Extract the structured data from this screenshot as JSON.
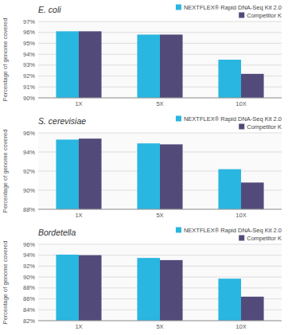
{
  "chart_data": [
    {
      "type": "bar",
      "title": "E. coli",
      "ylabel": "Percentage of genome covered",
      "categories": [
        "1X",
        "5X",
        "10X"
      ],
      "series": [
        {
          "name": "NEXTFLEX® Rapid DNA-Seq Kit 2.0",
          "color": "#29B6E0",
          "values": [
            96.1,
            95.8,
            93.5
          ]
        },
        {
          "name": "Competitor K",
          "color": "#524B7A",
          "values": [
            96.1,
            95.8,
            92.2
          ]
        }
      ],
      "ylim": [
        90,
        97
      ],
      "yticks": [
        {
          "value": 90,
          "label": "90%"
        },
        {
          "value": 91,
          "label": "91%"
        },
        {
          "value": 92,
          "label": "92%"
        },
        {
          "value": 93,
          "label": "93%"
        },
        {
          "value": 94,
          "label": "94%"
        },
        {
          "value": 95,
          "label": "95%"
        },
        {
          "value": 96,
          "label": "96%"
        },
        {
          "value": 97,
          "label": "97%"
        }
      ],
      "grid": true,
      "legend": "upper right"
    },
    {
      "type": "bar",
      "title": "S. cerevisiae",
      "ylabel": "Percentage of genome covered",
      "categories": [
        "1X",
        "5X",
        "10X"
      ],
      "series": [
        {
          "name": "NEXTFLEX® Rapid DNA-Seq Kit 2.0",
          "color": "#29B6E0",
          "values": [
            95.3,
            94.9,
            92.2
          ]
        },
        {
          "name": "Competitor K",
          "color": "#524B7A",
          "values": [
            95.4,
            94.8,
            90.8
          ]
        }
      ],
      "ylim": [
        88,
        96
      ],
      "yticks": [
        {
          "value": 88,
          "label": "88%"
        },
        {
          "value": 90,
          "label": "90%"
        },
        {
          "value": 92,
          "label": "92%"
        },
        {
          "value": 94,
          "label": "94%"
        },
        {
          "value": 96,
          "label": "96%"
        }
      ],
      "grid": true,
      "legend": "upper right"
    },
    {
      "type": "bar",
      "title": "Bordetella",
      "ylabel": "Percentage of genome covered",
      "categories": [
        "1X",
        "5X",
        "10X"
      ],
      "series": [
        {
          "name": "NEXTFLEX® Rapid DNA-Seq Kit 2.0",
          "color": "#29B6E0",
          "values": [
            94.1,
            93.5,
            89.7
          ]
        },
        {
          "name": "Competitor K",
          "color": "#524B7A",
          "values": [
            94.0,
            93.1,
            86.4
          ]
        }
      ],
      "ylim": [
        82,
        96
      ],
      "yticks": [
        {
          "value": 82,
          "label": "82%"
        },
        {
          "value": 84,
          "label": "84%"
        },
        {
          "value": 86,
          "label": "86%"
        },
        {
          "value": 88,
          "label": "88%"
        },
        {
          "value": 90,
          "label": "90%"
        },
        {
          "value": 92,
          "label": "92%"
        },
        {
          "value": 94,
          "label": "94%"
        },
        {
          "value": 96,
          "label": "96%"
        }
      ],
      "grid": true,
      "legend": "upper right"
    }
  ]
}
